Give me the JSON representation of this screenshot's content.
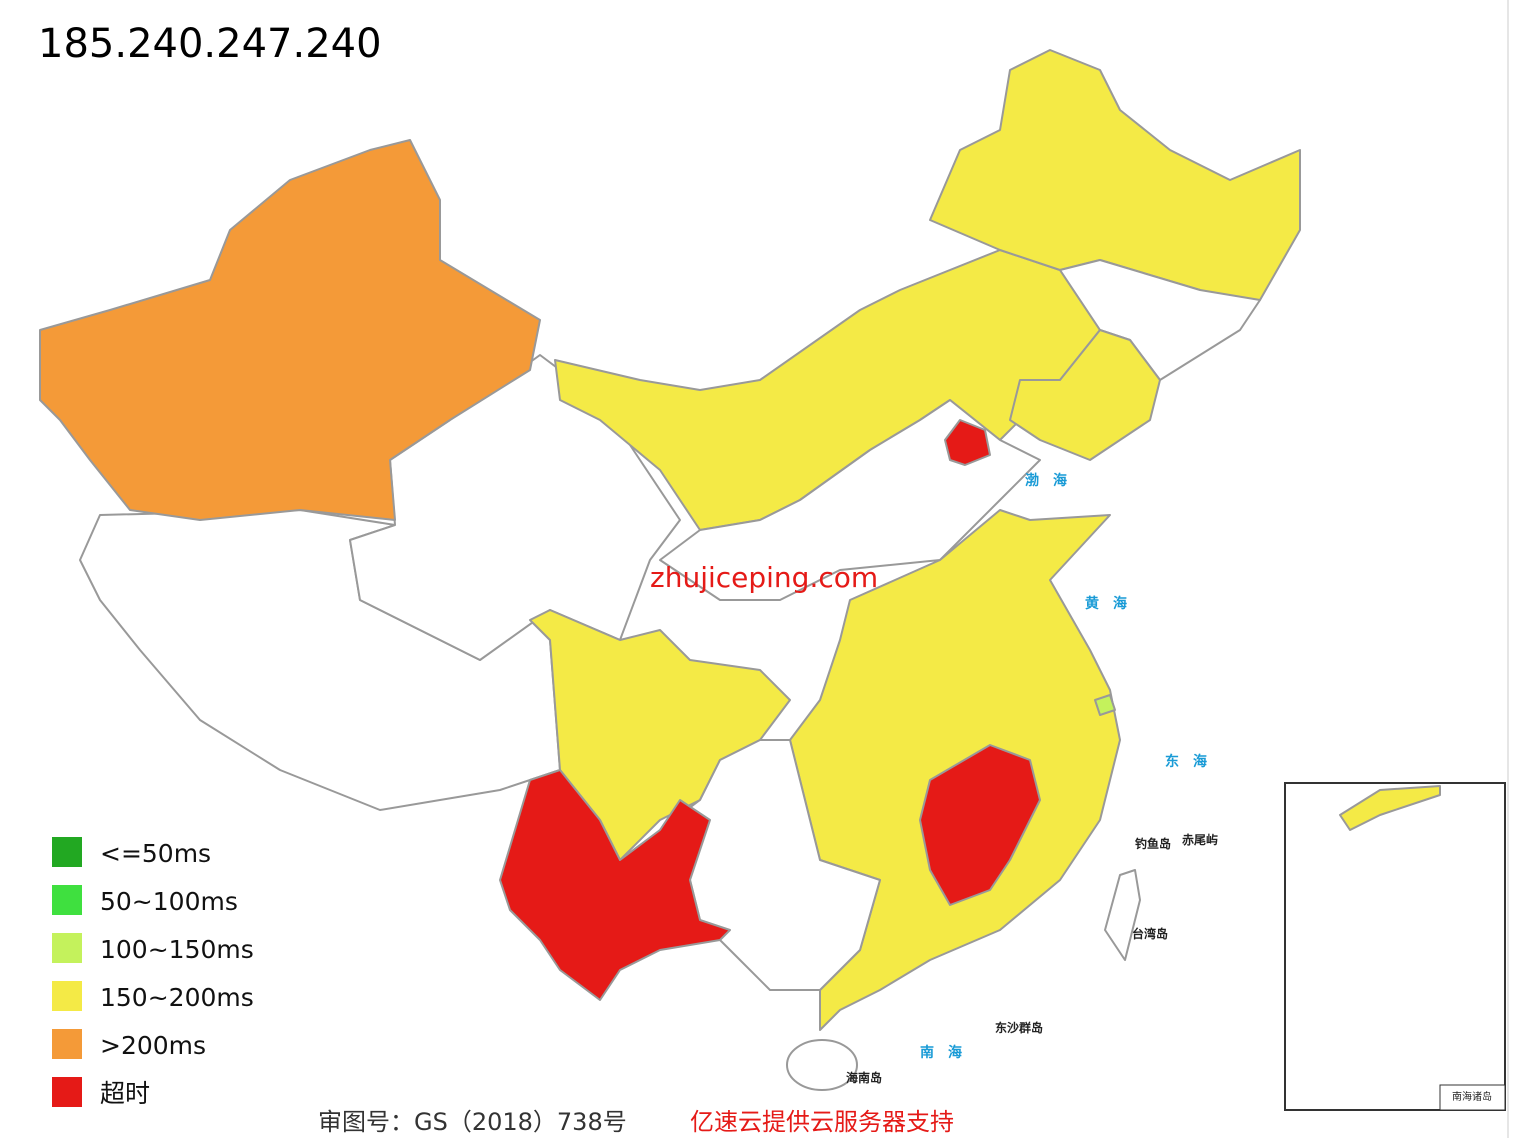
{
  "title": "185.240.247.240",
  "legend": [
    {
      "label": "<=50ms",
      "color": "#22a822"
    },
    {
      "label": "50~100ms",
      "color": "#3fe03f"
    },
    {
      "label": "100~150ms",
      "color": "#c4f25c"
    },
    {
      "label": "150~200ms",
      "color": "#f4ea46"
    },
    {
      "label": ">200ms",
      "color": "#f49a38"
    },
    {
      "label": "超时",
      "color": "#e51a17"
    }
  ],
  "watermark": "zhujiceping.com",
  "map_labels": {
    "bohai": "渤海",
    "huanghai": "黄海",
    "donghai": "东海",
    "nanhai": "南海",
    "diaoyu": "钓鱼岛",
    "chiwei": "赤尾屿",
    "taiwan": "台湾岛",
    "dongsha": "东沙群岛",
    "hainan": "海南岛",
    "inset": "南海诸岛"
  },
  "footer": {
    "approval": "审图号：GS（2018）738号",
    "sponsor": "亿速云提供云服务器支持"
  }
}
